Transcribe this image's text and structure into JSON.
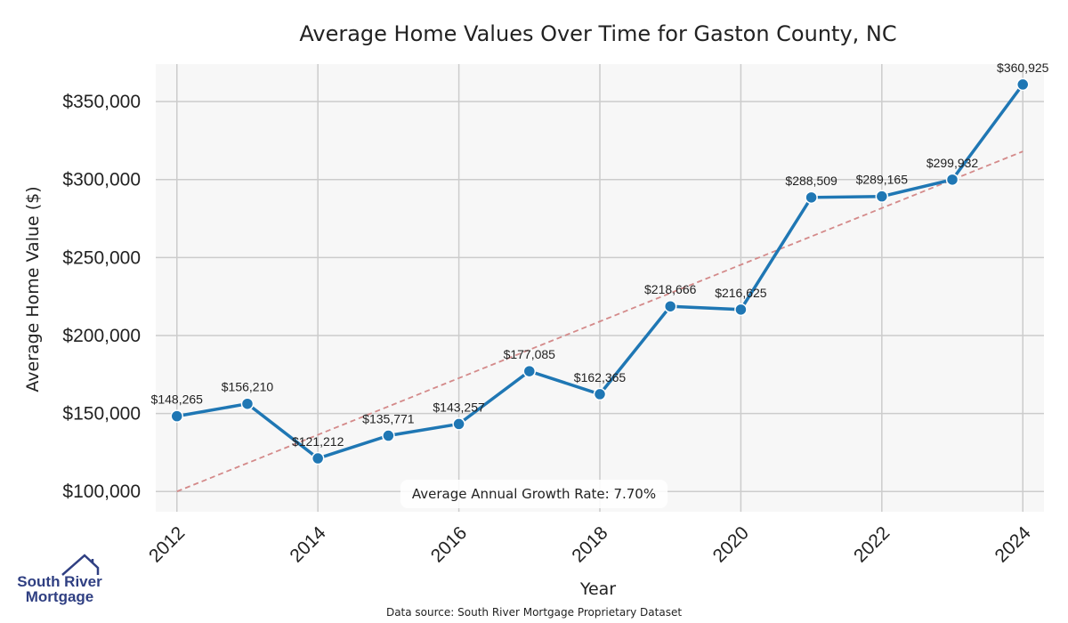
{
  "chart_data": {
    "type": "line",
    "title": "Average Home Values Over Time for Gaston County, NC",
    "xlabel": "Year",
    "ylabel": "Average Home Value ($)",
    "x": [
      2012,
      2013,
      2014,
      2015,
      2016,
      2017,
      2018,
      2019,
      2020,
      2021,
      2022,
      2023,
      2024
    ],
    "values": [
      148265,
      156210,
      121212,
      135771,
      143257,
      177085,
      162365,
      218666,
      216625,
      288509,
      289165,
      299932,
      360925
    ],
    "data_labels": [
      "$148,265",
      "$156,210",
      "$121,212",
      "$135,771",
      "$143,257",
      "$177,085",
      "$162,365",
      "$218,666",
      "$216,625",
      "$288,509",
      "$289,165",
      "$299,932",
      "$360,925"
    ],
    "xticks": [
      "2012",
      "2014",
      "2016",
      "2018",
      "2020",
      "2022",
      "2024"
    ],
    "yticks": [
      100000,
      150000,
      200000,
      250000,
      300000,
      350000
    ],
    "ytick_labels": [
      "$100,000",
      "$150,000",
      "$200,000",
      "$250,000",
      "$300,000",
      "$350,000"
    ],
    "xlim": [
      2011.7,
      2024.3
    ],
    "ylim": [
      87000,
      374000
    ],
    "trend_line": {
      "x": [
        2012,
        2024
      ],
      "y": [
        100000,
        318000
      ]
    },
    "annotation": "Average Annual Growth Rate: 7.70%",
    "grid": true,
    "colors": {
      "line": "#1f77b4",
      "trend": "#d48a8a",
      "plot_bg": "#f7f7f7",
      "grid": "#cccccc"
    }
  },
  "footer": {
    "source": "Data source: South River Mortgage Proprietary Dataset",
    "logo_line1": "South River",
    "logo_line2": "Mortgage",
    "logo_icon": "house-icon"
  }
}
